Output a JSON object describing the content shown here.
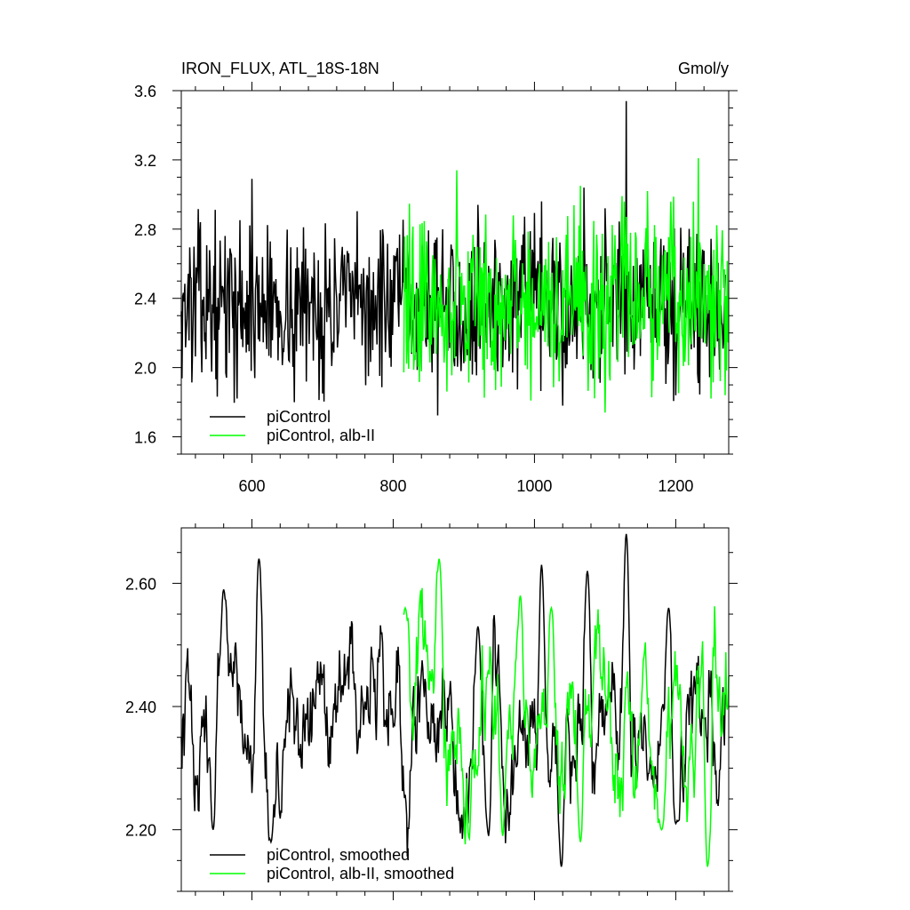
{
  "chart_data": [
    {
      "type": "line",
      "title": "IRON_FLUX, ATL_18S-18N",
      "units": "Gmol/y",
      "xlim": [
        500,
        1275
      ],
      "ylim": [
        1.5,
        3.6
      ],
      "xticks": [
        600,
        800,
        1000,
        1200
      ],
      "xtick_labels": [
        "600",
        "800",
        "1000",
        "1200"
      ],
      "yticks": [
        1.6,
        2.0,
        2.4,
        2.8,
        3.2,
        3.6
      ],
      "ytick_labels": [
        "1.6",
        "2.0",
        "2.4",
        "2.8",
        "3.2",
        "3.6"
      ],
      "grid": false,
      "legend_position": "bottom-left",
      "series": [
        {
          "name": "piControl",
          "color": "#000000",
          "x_start": 500,
          "x_end": 1270,
          "mean": 2.36,
          "amplitude": 0.22,
          "peaks": [
            [
              1130,
              3.54
            ],
            [
              527,
              2.84
            ],
            [
              600,
              3.09
            ],
            [
              820,
              2.68
            ],
            [
              920,
              2.94
            ],
            [
              1010,
              2.96
            ],
            [
              1070,
              3.04
            ],
            [
              1100,
              2.92
            ]
          ],
          "troughs": [
            [
              660,
              1.8
            ],
            [
              700,
              1.85
            ],
            [
              1040,
              1.78
            ],
            [
              1200,
              1.84
            ],
            [
              1232,
              1.91
            ]
          ]
        },
        {
          "name": "piControl, alb-II",
          "color": "#00ff00",
          "x_start": 815,
          "x_end": 1275,
          "mean": 2.37,
          "amplitude": 0.24,
          "peaks": [
            [
              1232,
              3.21
            ],
            [
              1270,
              3.2
            ],
            [
              890,
              3.14
            ],
            [
              1065,
              3.05
            ],
            [
              1160,
              3.02
            ]
          ],
          "troughs": [
            [
              1100,
              1.74
            ],
            [
              1270,
              1.84
            ],
            [
              945,
              1.87
            ],
            [
              1035,
              1.92
            ]
          ]
        }
      ]
    },
    {
      "type": "line",
      "title": "",
      "xlim": [
        500,
        1275
      ],
      "ylim": [
        2.1,
        2.69
      ],
      "xticks": [
        600,
        800,
        1000,
        1200
      ],
      "yticks": [
        2.2,
        2.4,
        2.6
      ],
      "ytick_labels": [
        "2.20",
        "2.40",
        "2.60"
      ],
      "grid": false,
      "legend_position": "bottom-left",
      "series": [
        {
          "name": "piControl, smoothed",
          "color": "#000000",
          "x_start": 500,
          "x_end": 1270,
          "mean": 2.37,
          "amplitude": 0.1,
          "peaks": [
            [
              1130,
              2.68
            ],
            [
              610,
              2.64
            ],
            [
              560,
              2.59
            ],
            [
              1010,
              2.63
            ],
            [
              1075,
              2.62
            ],
            [
              1190,
              2.56
            ],
            [
              920,
              2.53
            ]
          ],
          "troughs": [
            [
              627,
              2.18
            ],
            [
              1038,
              2.14
            ],
            [
              935,
              2.19
            ],
            [
              1200,
              2.21
            ],
            [
              545,
              2.2
            ]
          ]
        },
        {
          "name": "piControl, alb-II, smoothed",
          "color": "#00ff00",
          "x_start": 815,
          "x_end": 1275,
          "mean": 2.38,
          "amplitude": 0.1,
          "peaks": [
            [
              865,
              2.64
            ],
            [
              980,
              2.58
            ],
            [
              1024,
              2.56
            ],
            [
              1240,
              2.53
            ],
            [
              817,
              2.56
            ]
          ],
          "troughs": [
            [
              1245,
              2.14
            ],
            [
              955,
              2.19
            ],
            [
              1065,
              2.18
            ],
            [
              1180,
              2.2
            ]
          ]
        }
      ]
    }
  ]
}
